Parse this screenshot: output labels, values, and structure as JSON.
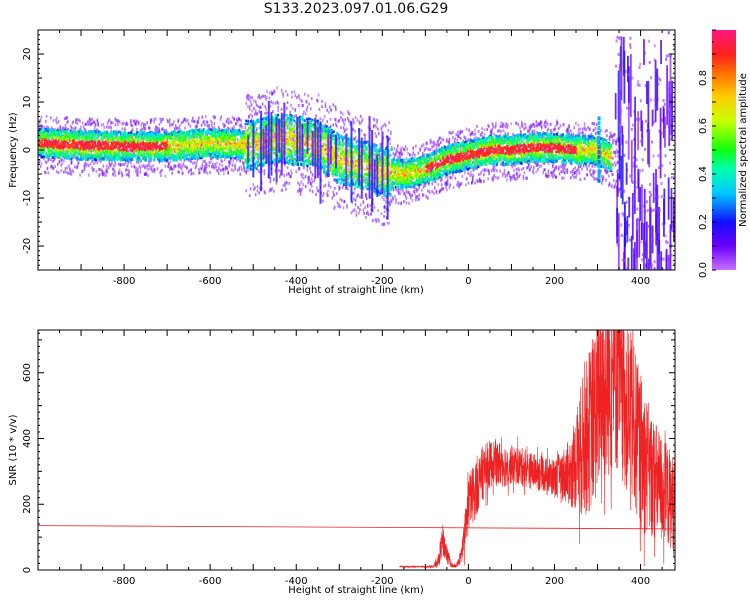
{
  "title": "S133.2023.097.01.06.G29",
  "colors": {
    "axis": "#000000",
    "snr_line": "#ee2222",
    "background": "#ffffff"
  },
  "chart_data": [
    {
      "type": "heatmap",
      "xlabel": "Height of straight line (km)",
      "ylabel": "Frequency (Hz)",
      "xlim": [
        -1000,
        480
      ],
      "ylim": [
        -25,
        25
      ],
      "x_ticks": [
        -800,
        -600,
        -400,
        -200,
        0,
        200,
        400
      ],
      "y_ticks": [
        -20,
        -10,
        0,
        10,
        20
      ],
      "colorbar": {
        "label": "Normalized spectral amplitude",
        "range": [
          0.0,
          1.0
        ],
        "ticks": [
          0.0,
          0.2,
          0.4,
          0.6,
          0.8
        ],
        "colormap": "rainbow (magenta-blue-cyan-green-yellow-red-pink)"
      },
      "ridge": {
        "x": [
          -1000,
          -900,
          -800,
          -700,
          -600,
          -500,
          -450,
          -400,
          -350,
          -300,
          -250,
          -200,
          -150,
          -100,
          -50,
          0,
          50,
          100,
          150,
          200,
          250,
          290,
          320,
          360
        ],
        "freq": [
          1.5,
          1.0,
          0.8,
          0.8,
          1.5,
          1.0,
          2.5,
          2.0,
          1.0,
          -2.0,
          -3.0,
          -4.5,
          -5.0,
          -4.0,
          -2.0,
          -1.0,
          0.0,
          0.0,
          0.5,
          0.5,
          0.0,
          0.0,
          -1.0,
          -3.0
        ]
      }
    },
    {
      "type": "line",
      "xlabel": "Height of straight line (km)",
      "ylabel": "SNR (10 * v/v)",
      "xlim": [
        -1000,
        480
      ],
      "ylim": [
        0,
        730
      ],
      "x_ticks": [
        -800,
        -600,
        -400,
        -200,
        0,
        200,
        400
      ],
      "y_ticks": [
        0,
        200,
        400,
        600
      ],
      "reference_line": {
        "x": [
          -1000,
          480
        ],
        "y": [
          135,
          125
        ]
      },
      "series": [
        {
          "x": [
            -160,
            -100,
            -80,
            -70,
            -60,
            -50,
            -40,
            -30,
            -20,
            -10,
            0,
            20,
            40,
            60,
            80,
            100,
            120,
            150,
            180,
            200,
            220,
            240,
            250,
            260,
            280,
            300,
            320,
            340,
            360,
            380,
            400,
            420,
            440,
            460,
            480
          ],
          "y": [
            10,
            10,
            12,
            30,
            90,
            50,
            15,
            10,
            30,
            80,
            200,
            260,
            310,
            330,
            320,
            320,
            315,
            300,
            290,
            280,
            290,
            300,
            330,
            360,
            420,
            500,
            570,
            600,
            540,
            450,
            360,
            300,
            260,
            230,
            200
          ],
          "spread": [
            2,
            2,
            5,
            20,
            50,
            30,
            8,
            5,
            15,
            50,
            90,
            90,
            80,
            70,
            70,
            60,
            60,
            55,
            55,
            60,
            80,
            110,
            150,
            200,
            250,
            280,
            300,
            300,
            280,
            260,
            240,
            200,
            180,
            160,
            140
          ]
        }
      ]
    }
  ]
}
